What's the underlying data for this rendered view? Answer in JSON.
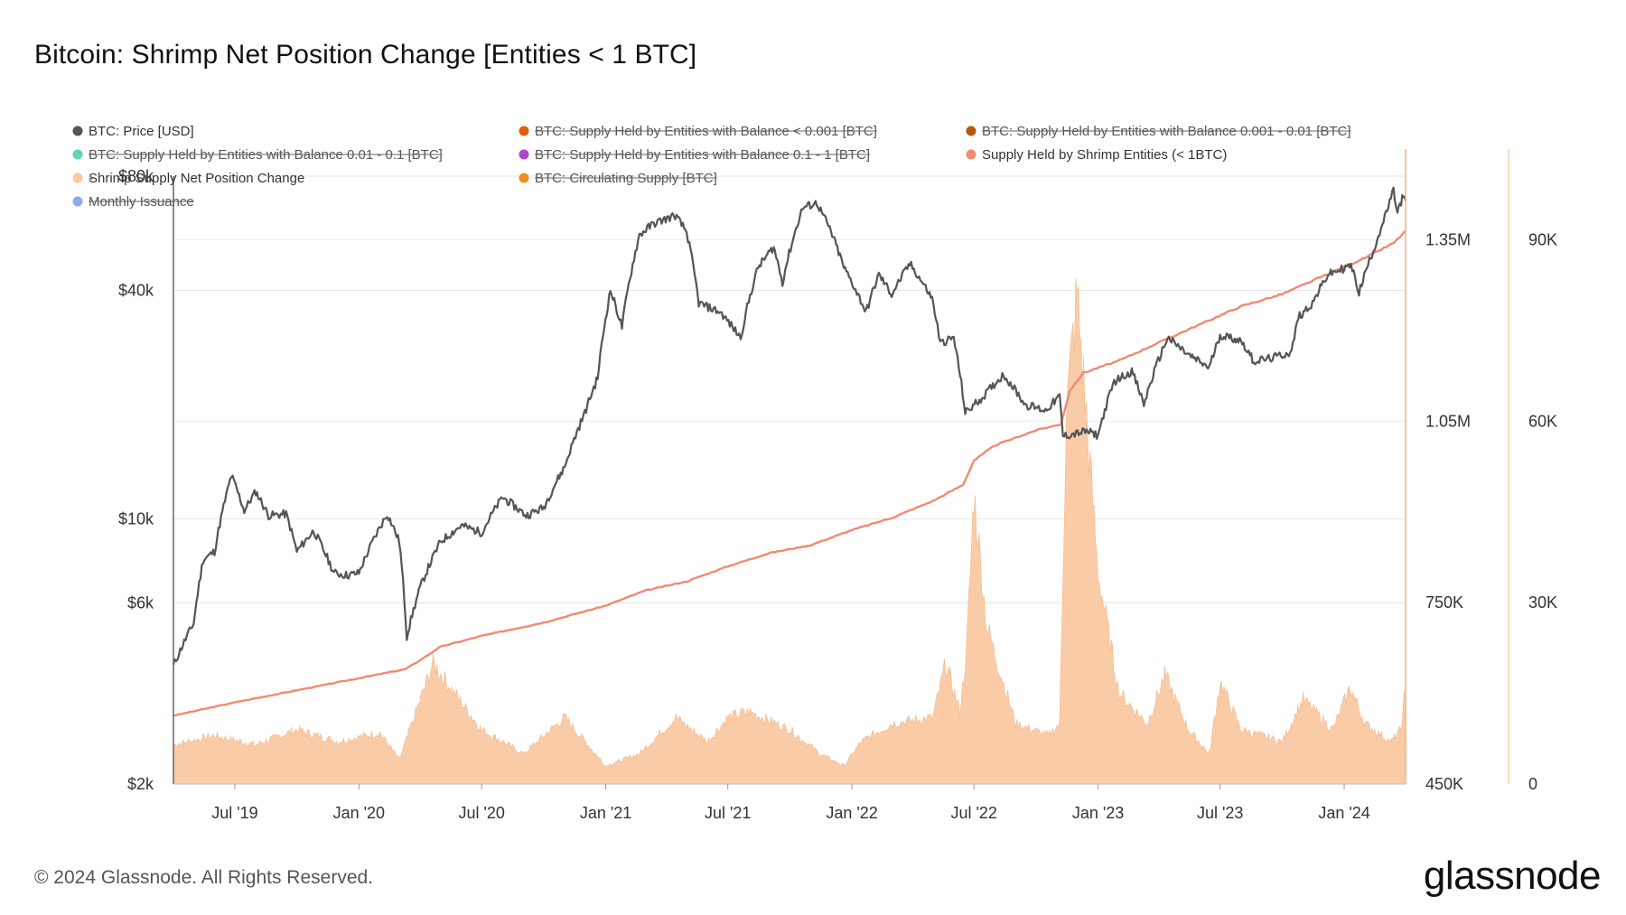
{
  "header": {
    "title": "Bitcoin: Shrimp Net Position Change [Entities < 1 BTC]"
  },
  "footer": {
    "copyright": "© 2024 Glassnode. All Rights Reserved.",
    "brand": "glassnode"
  },
  "chart_data": {
    "type": "line",
    "title": "Bitcoin: Shrimp Net Position Change [Entities < 1 BTC]",
    "x_ticks": [
      "Jul '19",
      "Jan '20",
      "Jul '20",
      "Jan '21",
      "Jul '21",
      "Jan '22",
      "Jul '22",
      "Jan '23",
      "Jul '23",
      "Jan '24"
    ],
    "x_tick_dates": [
      "2019-07-01",
      "2020-01-01",
      "2020-07-01",
      "2021-01-01",
      "2021-07-01",
      "2022-01-01",
      "2022-07-01",
      "2023-01-01",
      "2023-07-01",
      "2024-01-01"
    ],
    "x_range": [
      "2019-04-01",
      "2024-04-01"
    ],
    "axes": {
      "price": {
        "scale": "log",
        "ticks": [
          "$2k",
          "$6k",
          "$10k",
          "$40k",
          "$80k"
        ],
        "tick_values": [
          2000,
          6000,
          10000,
          40000,
          80000
        ],
        "range": [
          2000,
          80000
        ],
        "position": "left"
      },
      "supply": {
        "scale": "linear",
        "ticks": [
          "450K",
          "750K",
          "1.05M",
          "1.35M"
        ],
        "tick_values": [
          450000,
          750000,
          1050000,
          1350000
        ],
        "range": [
          450000,
          1500000
        ],
        "position": "right"
      },
      "net_change": {
        "scale": "linear",
        "ticks": [
          "0",
          "30K",
          "60K",
          "90K"
        ],
        "tick_values": [
          0,
          30000,
          60000,
          90000
        ],
        "range": [
          0,
          105000
        ],
        "position": "right-outer"
      }
    },
    "grid": true,
    "legend_position": "top",
    "legend": [
      {
        "name": "BTC: Price [USD]",
        "color": "#555555",
        "active": true
      },
      {
        "name": "BTC: Supply Held by Entities with Balance < 0.001 [BTC]",
        "color": "#e06010",
        "active": false
      },
      {
        "name": "BTC: Supply Held by Entities with Balance 0.001 - 0.01 [BTC]",
        "color": "#b35a10",
        "active": false
      },
      {
        "name": "BTC: Supply Held by Entities with Balance 0.01 - 0.1 [BTC]",
        "color": "#5fd6b4",
        "active": false
      },
      {
        "name": "BTC: Supply Held by Entities with Balance 0.1 - 1 [BTC]",
        "color": "#b045c8",
        "active": false
      },
      {
        "name": "Supply Held by Shrimp Entities (< 1BTC)",
        "color": "#f08a72",
        "active": true
      },
      {
        "name": "Shrimp Supply Net Position Change",
        "color": "#f9c9a2",
        "active": true
      },
      {
        "name": "BTC: Circulating Supply [BTC]",
        "color": "#e8901a",
        "active": false
      },
      {
        "name": "-",
        "color": "",
        "active": true
      },
      {
        "name": "Monthly Issuance",
        "color": "#8fa8f0",
        "active": false
      }
    ],
    "series": [
      {
        "name": "BTC: Price [USD]",
        "axis": "price",
        "color": "#555555",
        "points": [
          [
            "2019-04-01",
            4100
          ],
          [
            "2019-05-01",
            5300
          ],
          [
            "2019-05-15",
            7800
          ],
          [
            "2019-06-01",
            8200
          ],
          [
            "2019-06-26",
            13000
          ],
          [
            "2019-07-15",
            10500
          ],
          [
            "2019-08-01",
            11800
          ],
          [
            "2019-08-20",
            10200
          ],
          [
            "2019-09-15",
            10300
          ],
          [
            "2019-10-01",
            8200
          ],
          [
            "2019-10-26",
            9300
          ],
          [
            "2019-11-25",
            7200
          ],
          [
            "2019-12-15",
            7100
          ],
          [
            "2020-01-01",
            7200
          ],
          [
            "2020-02-12",
            10300
          ],
          [
            "2020-03-01",
            8700
          ],
          [
            "2020-03-12",
            4900
          ],
          [
            "2020-04-01",
            6600
          ],
          [
            "2020-05-01",
            8700
          ],
          [
            "2020-06-01",
            9600
          ],
          [
            "2020-07-01",
            9200
          ],
          [
            "2020-08-01",
            11400
          ],
          [
            "2020-09-05",
            10200
          ],
          [
            "2020-10-01",
            10700
          ],
          [
            "2020-11-01",
            13700
          ],
          [
            "2020-12-01",
            19000
          ],
          [
            "2020-12-20",
            23500
          ],
          [
            "2021-01-08",
            40000
          ],
          [
            "2021-01-25",
            32000
          ],
          [
            "2021-02-20",
            56000
          ],
          [
            "2021-03-13",
            60000
          ],
          [
            "2021-04-14",
            63000
          ],
          [
            "2021-05-01",
            57000
          ],
          [
            "2021-05-19",
            37000
          ],
          [
            "2021-06-20",
            35000
          ],
          [
            "2021-07-20",
            30000
          ],
          [
            "2021-08-15",
            46000
          ],
          [
            "2021-09-07",
            52000
          ],
          [
            "2021-09-20",
            42000
          ],
          [
            "2021-10-20",
            66000
          ],
          [
            "2021-11-10",
            68000
          ],
          [
            "2021-12-01",
            57000
          ],
          [
            "2021-12-20",
            46000
          ],
          [
            "2022-01-22",
            35000
          ],
          [
            "2022-02-10",
            44000
          ],
          [
            "2022-03-01",
            39000
          ],
          [
            "2022-03-28",
            47000
          ],
          [
            "2022-04-30",
            38000
          ],
          [
            "2022-05-12",
            29000
          ],
          [
            "2022-06-01",
            30000
          ],
          [
            "2022-06-18",
            19000
          ],
          [
            "2022-07-15",
            21000
          ],
          [
            "2022-08-14",
            24000
          ],
          [
            "2022-09-15",
            20000
          ],
          [
            "2022-10-15",
            19300
          ],
          [
            "2022-11-05",
            21000
          ],
          [
            "2022-11-10",
            16500
          ],
          [
            "2022-12-15",
            17000
          ],
          [
            "2023-01-01",
            16600
          ],
          [
            "2023-01-25",
            23000
          ],
          [
            "2023-02-20",
            24500
          ],
          [
            "2023-03-10",
            20000
          ],
          [
            "2023-04-14",
            30000
          ],
          [
            "2023-05-15",
            27000
          ],
          [
            "2023-06-15",
            25000
          ],
          [
            "2023-07-01",
            30500
          ],
          [
            "2023-08-01",
            29500
          ],
          [
            "2023-08-20",
            26000
          ],
          [
            "2023-09-15",
            26500
          ],
          [
            "2023-10-15",
            27500
          ],
          [
            "2023-10-25",
            34000
          ],
          [
            "2023-11-15",
            37000
          ],
          [
            "2023-12-08",
            44000
          ],
          [
            "2024-01-11",
            46500
          ],
          [
            "2024-01-23",
            39500
          ],
          [
            "2024-02-15",
            52000
          ],
          [
            "2024-03-01",
            62000
          ],
          [
            "2024-03-14",
            73000
          ],
          [
            "2024-03-20",
            64000
          ],
          [
            "2024-03-27",
            70000
          ],
          [
            "2024-04-01",
            69000
          ]
        ]
      },
      {
        "name": "Supply Held by Shrimp Entities (< 1BTC)",
        "axis": "supply",
        "color": "#f08a72",
        "points": [
          [
            "2019-04-01",
            563000
          ],
          [
            "2019-07-01",
            585000
          ],
          [
            "2019-10-01",
            605000
          ],
          [
            "2020-01-01",
            625000
          ],
          [
            "2020-03-10",
            640000
          ],
          [
            "2020-04-01",
            655000
          ],
          [
            "2020-05-01",
            677000
          ],
          [
            "2020-07-01",
            695000
          ],
          [
            "2020-10-01",
            717000
          ],
          [
            "2021-01-01",
            745000
          ],
          [
            "2021-03-01",
            770000
          ],
          [
            "2021-05-01",
            785000
          ],
          [
            "2021-07-01",
            810000
          ],
          [
            "2021-09-01",
            832000
          ],
          [
            "2021-11-01",
            845000
          ],
          [
            "2022-01-01",
            870000
          ],
          [
            "2022-03-01",
            890000
          ],
          [
            "2022-05-01",
            918000
          ],
          [
            "2022-06-15",
            945000
          ],
          [
            "2022-07-01",
            985000
          ],
          [
            "2022-08-01",
            1010000
          ],
          [
            "2022-10-01",
            1035000
          ],
          [
            "2022-11-07",
            1045000
          ],
          [
            "2022-11-20",
            1100000
          ],
          [
            "2022-12-10",
            1130000
          ],
          [
            "2023-02-01",
            1150000
          ],
          [
            "2023-04-01",
            1180000
          ],
          [
            "2023-06-01",
            1210000
          ],
          [
            "2023-08-01",
            1240000
          ],
          [
            "2023-10-01",
            1260000
          ],
          [
            "2023-12-01",
            1290000
          ],
          [
            "2024-02-01",
            1320000
          ],
          [
            "2024-03-15",
            1345000
          ],
          [
            "2024-04-01",
            1365000
          ]
        ]
      },
      {
        "name": "Shrimp Supply Net Position Change",
        "axis": "net_change",
        "color": "#f9c9a2",
        "type": "area",
        "points": [
          [
            "2019-04-01",
            6500
          ],
          [
            "2019-06-01",
            8000
          ],
          [
            "2019-08-01",
            6500
          ],
          [
            "2019-10-01",
            9000
          ],
          [
            "2019-12-01",
            7000
          ],
          [
            "2020-02-01",
            8500
          ],
          [
            "2020-03-01",
            4000
          ],
          [
            "2020-04-20",
            20000
          ],
          [
            "2020-05-15",
            16000
          ],
          [
            "2020-07-01",
            9000
          ],
          [
            "2020-09-01",
            5000
          ],
          [
            "2020-11-01",
            11000
          ],
          [
            "2021-01-01",
            3000
          ],
          [
            "2021-02-20",
            5000
          ],
          [
            "2021-04-15",
            11000
          ],
          [
            "2021-06-01",
            7000
          ],
          [
            "2021-07-01",
            11000
          ],
          [
            "2021-08-01",
            12000
          ],
          [
            "2021-10-01",
            9000
          ],
          [
            "2021-11-15",
            5000
          ],
          [
            "2021-12-20",
            3000
          ],
          [
            "2022-01-15",
            7000
          ],
          [
            "2022-03-01",
            10000
          ],
          [
            "2022-05-01",
            11000
          ],
          [
            "2022-05-20",
            20000
          ],
          [
            "2022-06-10",
            12000
          ],
          [
            "2022-06-20",
            22000
          ],
          [
            "2022-07-01",
            48000
          ],
          [
            "2022-07-20",
            26000
          ],
          [
            "2022-09-01",
            10000
          ],
          [
            "2022-10-20",
            8000
          ],
          [
            "2022-11-05",
            10000
          ],
          [
            "2022-11-15",
            62000
          ],
          [
            "2022-12-01",
            81000
          ],
          [
            "2023-01-01",
            35000
          ],
          [
            "2023-02-01",
            15000
          ],
          [
            "2023-03-15",
            10000
          ],
          [
            "2023-04-10",
            18000
          ],
          [
            "2023-05-15",
            9000
          ],
          [
            "2023-06-15",
            5000
          ],
          [
            "2023-07-01",
            17000
          ],
          [
            "2023-08-01",
            9000
          ],
          [
            "2023-10-01",
            7000
          ],
          [
            "2023-11-01",
            14000
          ],
          [
            "2023-12-15",
            9000
          ],
          [
            "2024-01-10",
            16000
          ],
          [
            "2024-02-01",
            10000
          ],
          [
            "2024-03-10",
            7000
          ],
          [
            "2024-03-25",
            9000
          ],
          [
            "2024-04-01",
            16000
          ]
        ]
      }
    ]
  }
}
